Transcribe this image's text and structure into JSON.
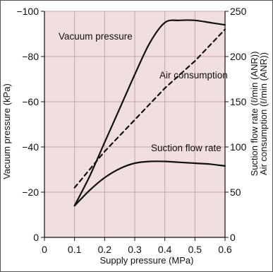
{
  "chart_data": {
    "type": "line",
    "xlabel": "Supply pressure (MPa)",
    "ylabel_left": "Vacuum pressure (kPa)",
    "ylabel_right_1": "Suction flow rate (ℓ/min (ANR))",
    "ylabel_right_2": "Air consumption (ℓ/min (ANR))",
    "xlim": [
      0,
      0.6
    ],
    "ylim_left": [
      0,
      -100
    ],
    "ylim_right": [
      0,
      250
    ],
    "x_ticks": [
      "0",
      "0.1",
      "0.2",
      "0.3",
      "0.4",
      "0.5",
      "0.6"
    ],
    "y_ticks_left": [
      "0",
      "−20",
      "−40",
      "−60",
      "−80",
      "−100"
    ],
    "y_ticks_right": [
      "0",
      "50",
      "100",
      "150",
      "200",
      "250"
    ],
    "grid": true,
    "background": "#f1dede",
    "series": [
      {
        "name": "Vacuum pressure",
        "axis": "left",
        "style": "solid",
        "x": [
          0.1,
          0.15,
          0.2,
          0.25,
          0.3,
          0.35,
          0.4,
          0.45,
          0.5,
          0.55,
          0.6
        ],
        "y": [
          -14,
          -27,
          -42,
          -57,
          -72,
          -86,
          -95,
          -96,
          -96,
          -95,
          -94
        ]
      },
      {
        "name": "Air consumption",
        "axis": "right",
        "style": "dashed",
        "x": [
          0.1,
          0.2,
          0.3,
          0.4,
          0.5,
          0.6
        ],
        "y": [
          55,
          95,
          130,
          165,
          195,
          230
        ]
      },
      {
        "name": "Suction flow rate",
        "axis": "right",
        "style": "solid",
        "x": [
          0.1,
          0.15,
          0.2,
          0.25,
          0.3,
          0.35,
          0.4,
          0.45,
          0.5,
          0.55,
          0.6
        ],
        "y": [
          35,
          52,
          66,
          76,
          82,
          84,
          84,
          83,
          82,
          81,
          79
        ]
      }
    ],
    "annotations": [
      {
        "text": "Vacuum pressure",
        "series": "Vacuum pressure"
      },
      {
        "text": "Air consumption",
        "series": "Air consumption"
      },
      {
        "text": "Suction flow rate",
        "series": "Suction flow rate"
      }
    ]
  },
  "colors": {
    "plot_background": "#f1dede",
    "grid": "#c7a4a4",
    "line": "#111111"
  }
}
